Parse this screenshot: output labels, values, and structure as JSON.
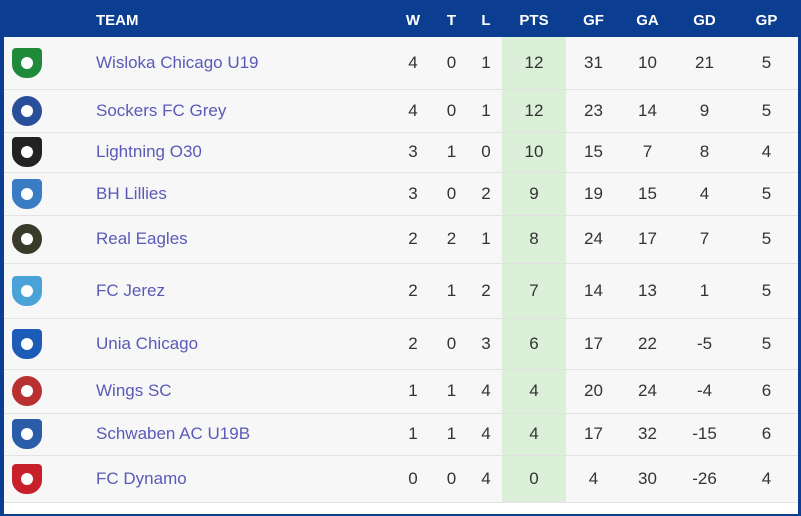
{
  "headers": {
    "team": "TEAM",
    "w": "W",
    "t": "T",
    "l": "L",
    "pts": "PTS",
    "gf": "GF",
    "ga": "GA",
    "gd": "GD",
    "gp": "GP"
  },
  "colors": {
    "header_bg": "#0b3d91",
    "pts_column": "#dcefd9",
    "team_link": "#5a5ab8"
  },
  "rows": [
    {
      "team": "Wisloka Chicago U19",
      "w": "4",
      "t": "0",
      "l": "1",
      "pts": "12",
      "gf": "31",
      "ga": "10",
      "gd": "21",
      "gp": "5",
      "logo_icon": "wisloka-crest-icon",
      "logo_color": "#1f8a3a"
    },
    {
      "team": "Sockers FC Grey",
      "w": "4",
      "t": "0",
      "l": "1",
      "pts": "12",
      "gf": "23",
      "ga": "14",
      "gd": "9",
      "gp": "5",
      "logo_icon": "sockers-crest-icon",
      "logo_color": "#2a4f9a"
    },
    {
      "team": "Lightning O30",
      "w": "3",
      "t": "1",
      "l": "0",
      "pts": "10",
      "gf": "15",
      "ga": "7",
      "gd": "8",
      "gp": "4",
      "logo_icon": "lightning-crest-icon",
      "logo_color": "#222222"
    },
    {
      "team": "BH Lillies",
      "w": "3",
      "t": "0",
      "l": "2",
      "pts": "9",
      "gf": "19",
      "ga": "15",
      "gd": "4",
      "gp": "5",
      "logo_icon": "lillies-crest-icon",
      "logo_color": "#3a7cc4"
    },
    {
      "team": "Real Eagles",
      "w": "2",
      "t": "2",
      "l": "1",
      "pts": "8",
      "gf": "24",
      "ga": "17",
      "gd": "7",
      "gp": "5",
      "logo_icon": "eagles-crest-icon",
      "logo_color": "#3a3a2a"
    },
    {
      "team": "FC Jerez",
      "w": "2",
      "t": "1",
      "l": "2",
      "pts": "7",
      "gf": "14",
      "ga": "13",
      "gd": "1",
      "gp": "5",
      "logo_icon": "jerez-crest-icon",
      "logo_color": "#4aa3d8"
    },
    {
      "team": "Unia Chicago",
      "w": "2",
      "t": "0",
      "l": "3",
      "pts": "6",
      "gf": "17",
      "ga": "22",
      "gd": "-5",
      "gp": "5",
      "logo_icon": "unia-crest-icon",
      "logo_color": "#1d5bb8"
    },
    {
      "team": "Wings SC",
      "w": "1",
      "t": "1",
      "l": "4",
      "pts": "4",
      "gf": "20",
      "ga": "24",
      "gd": "-4",
      "gp": "6",
      "logo_icon": "wings-crest-icon",
      "logo_color": "#b83030"
    },
    {
      "team": "Schwaben AC U19B",
      "w": "1",
      "t": "1",
      "l": "4",
      "pts": "4",
      "gf": "17",
      "ga": "32",
      "gd": "-15",
      "gp": "6",
      "logo_icon": "schwaben-crest-icon",
      "logo_color": "#2a5ca8"
    },
    {
      "team": "FC Dynamo",
      "w": "0",
      "t": "0",
      "l": "4",
      "pts": "0",
      "gf": "4",
      "ga": "30",
      "gd": "-26",
      "gp": "4",
      "logo_icon": "dynamo-crest-icon",
      "logo_color": "#c8202a"
    }
  ]
}
